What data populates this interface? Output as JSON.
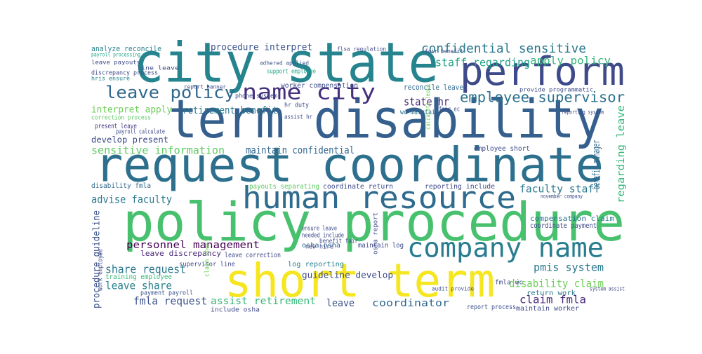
{
  "words": [
    {
      "text": "city state",
      "color": "#25848e"
    },
    {
      "text": "perform",
      "color": "#3e4a89"
    },
    {
      "text": "term disability",
      "color": "#355f8d"
    },
    {
      "text": "request coordinate",
      "color": "#2d708e"
    },
    {
      "text": "human resource",
      "color": "#2f6b8e"
    },
    {
      "text": "policy procedure",
      "color": "#48c16e"
    },
    {
      "text": "company name",
      "color": "#287d8e"
    },
    {
      "text": "short term",
      "color": "#f5e61f"
    },
    {
      "text": "name city",
      "color": "#46307e"
    },
    {
      "text": "leave policy",
      "color": "#31688e"
    },
    {
      "text": "employee supervisor",
      "color": "#2c728e"
    },
    {
      "text": "confidential sensitive",
      "color": "#2a788e"
    },
    {
      "text": "staff regarding",
      "color": "#20a486"
    },
    {
      "text": "apply policy",
      "color": "#35b779"
    },
    {
      "text": "procedure interpret",
      "color": "#3b528b"
    },
    {
      "text": "analyze reconcile",
      "color": "#26828e"
    },
    {
      "text": "retirement benefit",
      "color": "#2a788e"
    },
    {
      "text": "state hr",
      "color": "#482878"
    },
    {
      "text": "interpret apply",
      "color": "#6ece58"
    },
    {
      "text": "sensitive information",
      "color": "#5ec962"
    },
    {
      "text": "maintain confidential",
      "color": "#31688e"
    },
    {
      "text": "develop present",
      "color": "#3e4a89"
    },
    {
      "text": "present leave",
      "color": "#443983"
    },
    {
      "text": "benefit manager",
      "color": "#31688e"
    },
    {
      "text": "regarding leave",
      "color": "#35b779"
    },
    {
      "text": "faculty staff",
      "color": "#2a788e"
    },
    {
      "text": "advise faculty",
      "color": "#2a788e"
    },
    {
      "text": "disability claim",
      "color": "#6ece58"
    },
    {
      "text": "claim fmla",
      "color": "#482878"
    },
    {
      "text": "pmis system",
      "color": "#2a788e"
    },
    {
      "text": "procedure guideline",
      "color": "#3b528b"
    },
    {
      "text": "personnel management",
      "color": "#440154"
    },
    {
      "text": "share request",
      "color": "#2a788e"
    },
    {
      "text": "leave share",
      "color": "#26828e"
    },
    {
      "text": "fmla request",
      "color": "#3b528b"
    },
    {
      "text": "assist retirement",
      "color": "#35b779"
    },
    {
      "text": "leave",
      "color": "#3b528b"
    },
    {
      "text": "coordinator",
      "color": "#31688e"
    },
    {
      "text": "guideline develop",
      "color": "#3e4a89"
    },
    {
      "text": "training employee",
      "color": "#35b779"
    },
    {
      "text": "employee short",
      "color": "#3e4a89"
    },
    {
      "text": "wc maintain",
      "color": "#2c728e"
    },
    {
      "text": "worker compensation",
      "color": "#3e4a89"
    },
    {
      "text": "reconcile leave",
      "color": "#31688e"
    },
    {
      "text": "reporting include",
      "color": "#3e4a89"
    },
    {
      "text": "compensation claim",
      "color": "#2c728e"
    },
    {
      "text": "coordinate payment",
      "color": "#3e4a89"
    },
    {
      "text": "disability fmla",
      "color": "#31688e"
    },
    {
      "text": "payouts separating",
      "color": "#5ec962"
    },
    {
      "text": "coordinate return",
      "color": "#3e4a89"
    },
    {
      "text": "leave discrepancy",
      "color": "#482878"
    },
    {
      "text": "maintain log",
      "color": "#3e4a89"
    },
    {
      "text": "log reporting",
      "color": "#26828e"
    },
    {
      "text": "osha osha",
      "color": "#31688e"
    },
    {
      "text": "return work",
      "color": "#2a788e"
    },
    {
      "text": "report process",
      "color": "#3b528b"
    },
    {
      "text": "maintain worker",
      "color": "#3e4a89"
    },
    {
      "text": "leave correction",
      "color": "#3e4a89"
    },
    {
      "text": "payment payroll",
      "color": "#3b528b"
    },
    {
      "text": "supervisor line",
      "color": "#3e4a89"
    },
    {
      "text": "include osha",
      "color": "#3e4a89"
    },
    {
      "text": "discrepancy process",
      "color": "#3e4a89"
    },
    {
      "text": "correction process",
      "color": "#5ec962"
    },
    {
      "text": "payroll calculate",
      "color": "#3e4a89"
    },
    {
      "text": "support employee",
      "color": "#20a486"
    },
    {
      "text": "adhered applied",
      "color": "#3b528b"
    },
    {
      "text": "line leave",
      "color": "#3e4a89"
    },
    {
      "text": "leave payouts",
      "color": "#3e4a89"
    },
    {
      "text": "hris ensure",
      "color": "#26828e"
    },
    {
      "text": "fair benefit",
      "color": "#3e4a89"
    },
    {
      "text": "flsa regulation",
      "color": "#3e4a89"
    },
    {
      "text": "fmla wc",
      "color": "#3e4a89"
    },
    {
      "text": "audit provide",
      "color": "#3e4a89"
    },
    {
      "text": "system assist",
      "color": "#3e4a89"
    },
    {
      "text": "november company",
      "color": "#3e4a89"
    },
    {
      "text": "reporting system",
      "color": "#3e4a89"
    },
    {
      "text": "provide programmatic",
      "color": "#3e4a89"
    },
    {
      "text": "calculate leave",
      "color": "#6ece58"
    },
    {
      "text": "ensure leave",
      "color": "#3e4a89"
    },
    {
      "text": "needed include",
      "color": "#3e4a89"
    },
    {
      "text": "benefit fair",
      "color": "#3e4a89"
    },
    {
      "text": "new hire",
      "color": "#3e4a89"
    },
    {
      "text": "osha report",
      "color": "#3e4a89"
    },
    {
      "text": "claim short",
      "color": "#6ece58"
    },
    {
      "text": "work employee",
      "color": "#3e4a89"
    },
    {
      "text": "payroll processing",
      "color": "#20a486"
    },
    {
      "text": "hr duty",
      "color": "#3e4a89"
    },
    {
      "text": "assist hr",
      "color": "#3e4a89"
    },
    {
      "text": "fair ec",
      "color": "#3e4a89"
    },
    {
      "text": "phone system",
      "color": "#3e4a89"
    },
    {
      "text": "report banner",
      "color": "#3e4a89"
    }
  ]
}
